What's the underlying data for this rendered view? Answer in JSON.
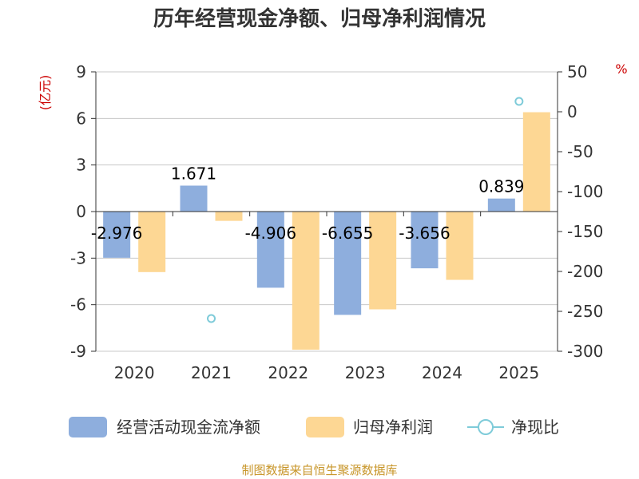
{
  "chart_data": {
    "type": "bar",
    "title": "历年经营现金净额、归母净利润情况",
    "categories": [
      "2020",
      "2021",
      "2022",
      "2023",
      "2024",
      "2025"
    ],
    "left_axis": {
      "unit": "(亿元)",
      "min": -9,
      "max": 9,
      "ticks": [
        9,
        6,
        3,
        0,
        -3,
        -6,
        -9
      ]
    },
    "right_axis": {
      "unit": "%",
      "min": -300,
      "max": 50,
      "ticks": [
        50,
        0,
        -50,
        -100,
        -150,
        -200,
        -250,
        -300
      ]
    },
    "series": [
      {
        "name": "经营活动现金流净额",
        "type": "bar",
        "axis": "left",
        "color": "#8eaedd",
        "values": [
          -2.976,
          1.671,
          -4.906,
          -6.655,
          -3.656,
          0.839
        ],
        "labels": [
          "-2.976",
          "1.671",
          "-4.906",
          "-6.655",
          "-3.656",
          "0.839"
        ]
      },
      {
        "name": "归母净利润",
        "type": "bar",
        "axis": "left",
        "color": "#fdd794",
        "values": [
          -3.9,
          -0.6,
          -8.9,
          -6.3,
          -4.4,
          6.4
        ]
      },
      {
        "name": "净现比",
        "type": "scatter",
        "axis": "right",
        "color": "#7ecbd9",
        "values": [
          null,
          -259,
          null,
          null,
          null,
          13
        ]
      }
    ],
    "grid": true,
    "legend_position": "bottom"
  },
  "source": "制图数据来自恒生聚源数据库"
}
